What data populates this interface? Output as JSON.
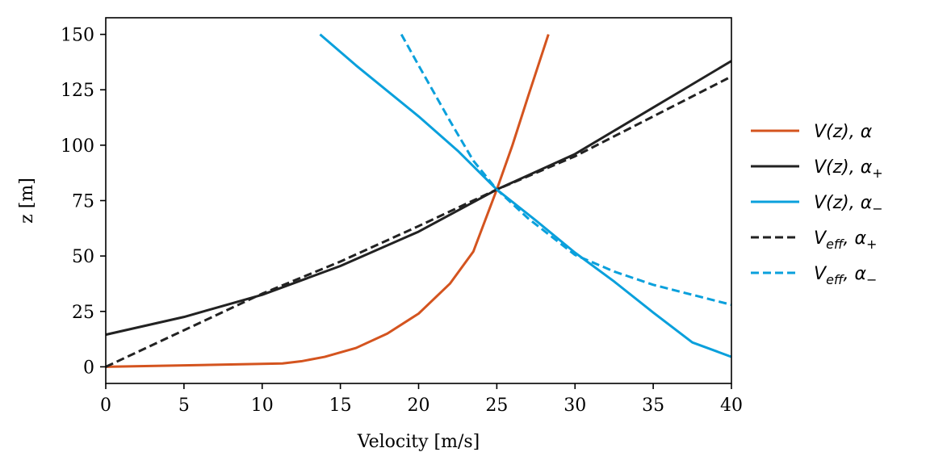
{
  "chart_data": {
    "type": "line",
    "xlabel": "Velocity [m/s]",
    "ylabel": "z [m]",
    "xlim": [
      0,
      40
    ],
    "ylim": [
      -7.5,
      157.5
    ],
    "xticks": [
      "0",
      "5",
      "10",
      "15",
      "20",
      "25",
      "30",
      "35",
      "40"
    ],
    "yticks": [
      "0",
      "25",
      "50",
      "75",
      "100",
      "125",
      "150"
    ],
    "grid": false,
    "legend_position": "right-outside",
    "series": [
      {
        "name": "V(z), α",
        "legend_label": {
          "base": "V(z), α",
          "sub": ""
        },
        "color": "#d4541f",
        "dash": "solid",
        "points": [
          [
            0,
            0
          ],
          [
            11.3,
            1.5
          ],
          [
            12.5,
            2.5
          ],
          [
            14.0,
            4.5
          ],
          [
            16.0,
            8.5
          ],
          [
            18.0,
            15.0
          ],
          [
            20.0,
            24.0
          ],
          [
            22.0,
            37.5
          ],
          [
            23.5,
            52.0
          ],
          [
            25.0,
            80.0
          ],
          [
            26.0,
            100.0
          ],
          [
            27.0,
            122.0
          ],
          [
            28.3,
            150.0
          ]
        ]
      },
      {
        "name": "V(z), α+",
        "legend_label": {
          "base": "V(z), α",
          "sub": "+"
        },
        "color": "#222222",
        "dash": "solid",
        "points": [
          [
            0,
            14.5
          ],
          [
            5,
            22.5
          ],
          [
            10,
            32.5
          ],
          [
            15,
            45.5
          ],
          [
            20,
            61.0
          ],
          [
            25,
            80.0
          ],
          [
            30,
            96.0
          ],
          [
            35,
            117.0
          ],
          [
            40,
            138.0
          ]
        ]
      },
      {
        "name": "V(z), α−",
        "legend_label": {
          "base": "V(z), α",
          "sub": "−"
        },
        "color": "#0aa0dc",
        "dash": "solid",
        "points": [
          [
            13.7,
            150.0
          ],
          [
            16.0,
            136.0
          ],
          [
            20.0,
            113.0
          ],
          [
            22.5,
            97.5
          ],
          [
            25.0,
            80.0
          ],
          [
            27.5,
            66.0
          ],
          [
            30.0,
            51.5
          ],
          [
            32.5,
            38.5
          ],
          [
            35.0,
            24.5
          ],
          [
            37.5,
            11.0
          ],
          [
            40.0,
            4.5
          ]
        ]
      },
      {
        "name": "Veff, α+",
        "legend_label": {
          "base": "V",
          "sub_italic": "eff",
          "rest": ", α",
          "sub": "+"
        },
        "color": "#222222",
        "dash": "dashed",
        "points": [
          [
            0,
            0
          ],
          [
            5,
            16.5
          ],
          [
            10,
            33.0
          ],
          [
            15,
            47.5
          ],
          [
            20,
            63.5
          ],
          [
            25,
            80.0
          ],
          [
            30,
            95.0
          ],
          [
            35,
            113.0
          ],
          [
            40,
            131.0
          ]
        ]
      },
      {
        "name": "Veff, α−",
        "legend_label": {
          "base": "V",
          "sub_italic": "eff",
          "rest": ", α",
          "sub": "−"
        },
        "color": "#0aa0dc",
        "dash": "dashed",
        "points": [
          [
            18.9,
            150.0
          ],
          [
            20.0,
            136.0
          ],
          [
            22.0,
            111.0
          ],
          [
            23.5,
            93.0
          ],
          [
            25.0,
            80.0
          ],
          [
            27.0,
            67.0
          ],
          [
            30.0,
            50.5
          ],
          [
            32.5,
            43.0
          ],
          [
            35.0,
            37.0
          ],
          [
            37.5,
            32.5
          ],
          [
            40.0,
            28.0
          ]
        ]
      }
    ]
  }
}
